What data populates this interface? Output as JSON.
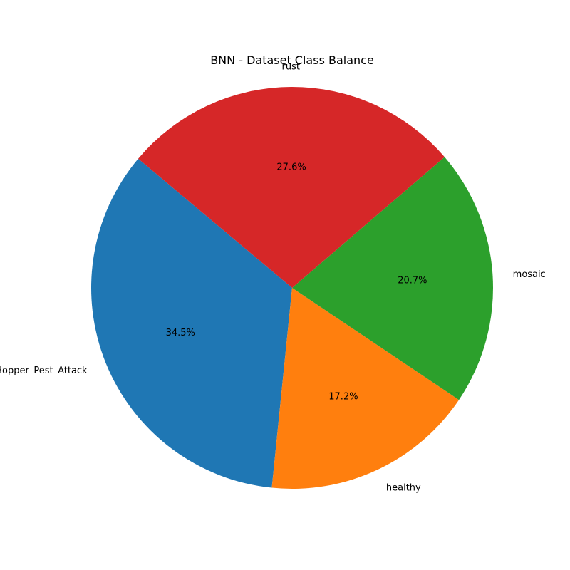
{
  "chart_data": {
    "type": "pie",
    "title": "BNN - Dataset Class Balance",
    "categories": [
      "Hopper_Pest_Attack",
      "healthy",
      "mosaic",
      "rust"
    ],
    "values": [
      34.5,
      17.2,
      20.7,
      27.6
    ],
    "value_labels": [
      "34.5%",
      "17.2%",
      "20.7%",
      "27.6%"
    ],
    "colors": [
      "#1f77b4",
      "#ff7f0e",
      "#2ca02c",
      "#d62728"
    ],
    "start_angle_deg": 140,
    "direction": "counterclockwise"
  }
}
